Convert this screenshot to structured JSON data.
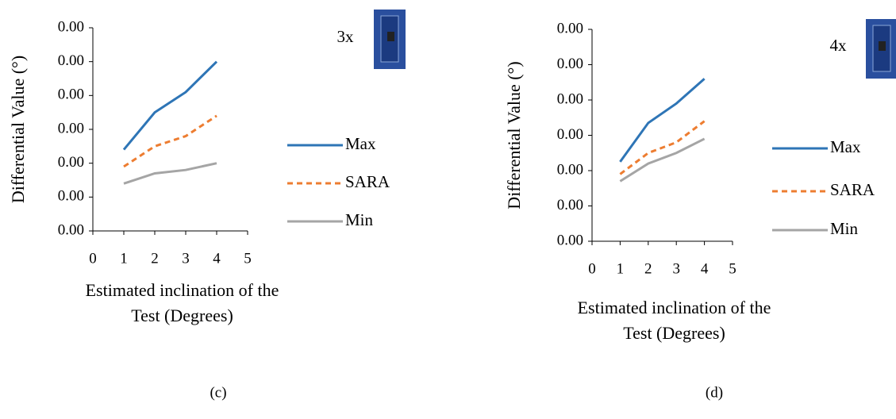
{
  "chart_data": [
    {
      "type": "line",
      "annotation": "3x",
      "caption": "(c)",
      "x_label": "Estimated inclination of the Test (Degrees)",
      "y_label": "Differential Value (°)",
      "x": [
        1,
        2,
        3,
        4
      ],
      "xlim": [
        0,
        5
      ],
      "xticks": [
        0,
        1,
        2,
        3,
        4,
        5
      ],
      "ylim": [
        0,
        0.006
      ],
      "yticks": [
        {
          "value": 0,
          "label": "0.00"
        },
        {
          "value": 0.001,
          "label": "0.00"
        },
        {
          "value": 0.002,
          "label": "0.00"
        },
        {
          "value": 0.003,
          "label": "0.00"
        },
        {
          "value": 0.004,
          "label": "0.00"
        },
        {
          "value": 0.005,
          "label": "0.00"
        },
        {
          "value": 0.006,
          "label": "0.00"
        }
      ],
      "series": [
        {
          "name": "Max",
          "color": "#2e75b6",
          "dashed": false,
          "values": [
            0.0024,
            0.0035,
            0.0041,
            0.005
          ]
        },
        {
          "name": "SARA",
          "color": "#ed7d31",
          "dashed": true,
          "values": [
            0.0019,
            0.0025,
            0.0028,
            0.0034
          ]
        },
        {
          "name": "Min",
          "color": "#a5a5a5",
          "dashed": false,
          "values": [
            0.0014,
            0.0017,
            0.0018,
            0.002
          ]
        }
      ]
    },
    {
      "type": "line",
      "annotation": "4x",
      "caption": "(d)",
      "x_label": "Estimated inclination of the Test (Degrees)",
      "y_label": "Differential Value (°)",
      "x": [
        1,
        2,
        3,
        4
      ],
      "xlim": [
        0,
        5
      ],
      "xticks": [
        0,
        1,
        2,
        3,
        4,
        5
      ],
      "ylim": [
        0,
        0.006
      ],
      "yticks": [
        {
          "value": 0,
          "label": "0.00"
        },
        {
          "value": 0.001,
          "label": "0.00"
        },
        {
          "value": 0.002,
          "label": "0.00"
        },
        {
          "value": 0.003,
          "label": "0.00"
        },
        {
          "value": 0.004,
          "label": "0.00"
        },
        {
          "value": 0.005,
          "label": "0.00"
        },
        {
          "value": 0.006,
          "label": "0.00"
        }
      ],
      "series": [
        {
          "name": "Max",
          "color": "#2e75b6",
          "dashed": false,
          "values": [
            0.00225,
            0.00335,
            0.0039,
            0.0046
          ]
        },
        {
          "name": "SARA",
          "color": "#ed7d31",
          "dashed": true,
          "values": [
            0.0019,
            0.0025,
            0.0028,
            0.0034
          ]
        },
        {
          "name": "Min",
          "color": "#a5a5a5",
          "dashed": false,
          "values": [
            0.0017,
            0.0022,
            0.0025,
            0.0029
          ]
        }
      ]
    }
  ]
}
